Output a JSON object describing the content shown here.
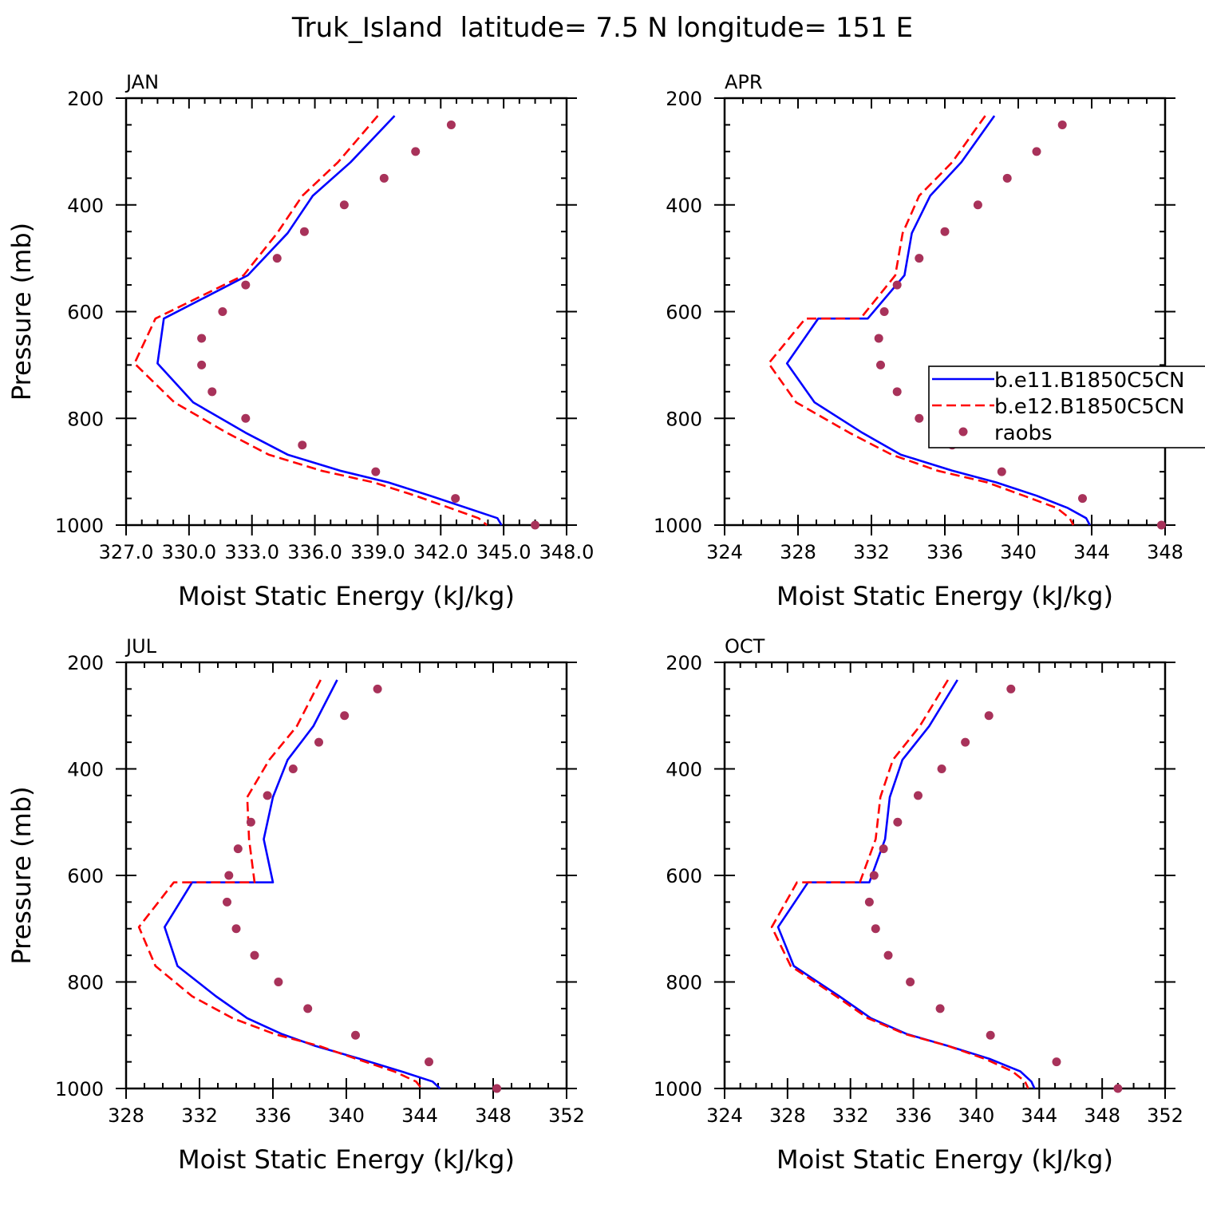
{
  "figure_title": "Truk_Island  latitude= 7.5 N longitude= 151 E",
  "colors": {
    "series1": "#0000ff",
    "series2": "#ff0000",
    "raobs": "#a8325a"
  },
  "legend": {
    "entries": [
      "b.e11.B1850C5CN",
      "b.e12.B1850C5CN",
      "raobs"
    ]
  },
  "chart_data": [
    {
      "type": "line",
      "panel_label": "JAN",
      "xlabel": "Moist Static Energy (kJ/kg)",
      "ylabel": "Pressure (mb)",
      "xlim": [
        327,
        348
      ],
      "ylim": [
        1000,
        200
      ],
      "xticks": [
        327,
        330,
        333,
        336,
        339,
        342,
        345,
        348
      ],
      "xtick_labels": [
        "327.0",
        "330.0",
        "333.0",
        "336.0",
        "339.0",
        "342.0",
        "345.0",
        "348.0"
      ],
      "yticks": [
        200,
        400,
        600,
        800,
        1000
      ],
      "series": [
        {
          "name": "b.e11.B1850C5CN",
          "style": "solid",
          "x": [
            339.8,
            337.7,
            335.9,
            334.7,
            332.8,
            328.8,
            328.5,
            330.2,
            332.7,
            334.7,
            337.2,
            339.5,
            341.5,
            344.7,
            344.9
          ],
          "y": [
            233,
            320,
            383,
            453,
            532,
            613,
            697,
            770,
            827,
            868,
            898,
            920,
            945,
            987,
            1000
          ]
        },
        {
          "name": "b.e12.B1850C5CN",
          "style": "dashed",
          "x": [
            339.0,
            337.1,
            335.4,
            334.2,
            332.6,
            328.4,
            327.4,
            329.3,
            331.8,
            333.8,
            336.3,
            338.8,
            340.8,
            343.8,
            344.2
          ],
          "y": [
            233,
            320,
            383,
            453,
            532,
            613,
            697,
            770,
            827,
            868,
            898,
            920,
            945,
            987,
            1000
          ]
        },
        {
          "name": "raobs",
          "style": "markers",
          "x": [
            342.5,
            340.8,
            339.3,
            337.4,
            335.5,
            334.2,
            332.7,
            331.6,
            330.6,
            330.6,
            331.1,
            332.7,
            335.4,
            338.9,
            342.7,
            346.5
          ],
          "y": [
            250,
            300,
            350,
            400,
            450,
            500,
            550,
            600,
            650,
            700,
            750,
            800,
            850,
            900,
            950,
            1000
          ]
        }
      ]
    },
    {
      "type": "line",
      "panel_label": "APR",
      "xlabel": "Moist Static Energy (kJ/kg)",
      "ylabel": "",
      "xlim": [
        324,
        348
      ],
      "ylim": [
        1000,
        200
      ],
      "xticks": [
        324,
        328,
        332,
        336,
        340,
        344,
        348
      ],
      "xtick_labels": [
        "324",
        "328",
        "332",
        "336",
        "340",
        "344",
        "348"
      ],
      "yticks": [
        200,
        400,
        600,
        800,
        1000
      ],
      "series": [
        {
          "name": "b.e11.B1850C5CN",
          "style": "solid",
          "x": [
            338.7,
            336.9,
            335.2,
            334.2,
            333.8,
            331.8,
            329.1,
            327.4,
            328.9,
            331.5,
            333.6,
            336.4,
            338.8,
            341.0,
            342.7,
            343.7,
            343.9
          ],
          "y": [
            233,
            320,
            383,
            453,
            532,
            613,
            613,
            697,
            770,
            827,
            868,
            898,
            920,
            945,
            968,
            987,
            1000
          ]
        },
        {
          "name": "b.e12.B1850C5CN",
          "style": "dashed",
          "x": [
            338.2,
            336.4,
            334.6,
            333.7,
            333.3,
            331.4,
            328.4,
            326.4,
            327.9,
            330.8,
            333.1,
            335.6,
            338.3,
            340.3,
            342.1,
            342.8,
            343.0
          ],
          "y": [
            233,
            320,
            383,
            453,
            532,
            613,
            613,
            697,
            770,
            827,
            868,
            898,
            920,
            945,
            968,
            987,
            1000
          ]
        },
        {
          "name": "raobs",
          "style": "markers",
          "x": [
            342.4,
            341.0,
            339.4,
            337.8,
            336.0,
            334.6,
            333.4,
            332.7,
            332.4,
            332.5,
            333.4,
            334.6,
            336.4,
            339.1,
            343.5,
            347.8
          ],
          "y": [
            250,
            300,
            350,
            400,
            450,
            500,
            550,
            600,
            650,
            700,
            750,
            800,
            850,
            900,
            950,
            1000
          ]
        }
      ]
    },
    {
      "type": "line",
      "panel_label": "JUL",
      "xlabel": "Moist Static Energy (kJ/kg)",
      "ylabel": "Pressure (mb)",
      "xlim": [
        328,
        352
      ],
      "ylim": [
        1000,
        200
      ],
      "xticks": [
        328,
        332,
        336,
        340,
        344,
        348,
        352
      ],
      "xtick_labels": [
        "328",
        "332",
        "336",
        "340",
        "344",
        "348",
        "352"
      ],
      "yticks": [
        200,
        400,
        600,
        800,
        1000
      ],
      "series": [
        {
          "name": "b.e11.B1850C5CN",
          "style": "solid",
          "x": [
            339.5,
            338.2,
            336.8,
            336.0,
            335.5,
            336.0,
            331.6,
            330.1,
            330.8,
            332.9,
            334.6,
            336.5,
            338.3,
            340.8,
            343.0,
            344.7,
            345.1
          ],
          "y": [
            233,
            320,
            383,
            453,
            532,
            613,
            613,
            697,
            770,
            827,
            868,
            898,
            920,
            945,
            968,
            987,
            1000
          ]
        },
        {
          "name": "b.e12.B1850C5CN",
          "style": "dashed",
          "x": [
            338.6,
            337.3,
            335.8,
            334.6,
            334.7,
            335.0,
            330.6,
            328.7,
            329.6,
            331.6,
            333.8,
            336.1,
            338.5,
            340.6,
            342.6,
            343.8,
            344.1
          ],
          "y": [
            233,
            320,
            383,
            453,
            532,
            613,
            613,
            697,
            770,
            827,
            868,
            898,
            920,
            945,
            968,
            987,
            1000
          ]
        },
        {
          "name": "raobs",
          "style": "markers",
          "x": [
            341.7,
            339.9,
            338.5,
            337.1,
            335.7,
            334.8,
            334.1,
            333.6,
            333.5,
            334.0,
            335.0,
            336.3,
            337.9,
            340.5,
            344.5,
            348.2
          ],
          "y": [
            250,
            300,
            350,
            400,
            450,
            500,
            550,
            600,
            650,
            700,
            750,
            800,
            850,
            900,
            950,
            1000
          ]
        }
      ]
    },
    {
      "type": "line",
      "panel_label": "OCT",
      "xlabel": "Moist Static Energy (kJ/kg)",
      "ylabel": "",
      "xlim": [
        324,
        352
      ],
      "ylim": [
        1000,
        200
      ],
      "xticks": [
        324,
        328,
        332,
        336,
        340,
        344,
        348,
        352
      ],
      "xtick_labels": [
        "324",
        "328",
        "332",
        "336",
        "340",
        "344",
        "348",
        "352"
      ],
      "yticks": [
        200,
        400,
        600,
        800,
        1000
      ],
      "series": [
        {
          "name": "b.e11.B1850C5CN",
          "style": "solid",
          "x": [
            338.8,
            337.0,
            335.3,
            334.5,
            334.2,
            333.2,
            329.3,
            327.4,
            328.4,
            331.3,
            333.3,
            335.6,
            338.2,
            340.9,
            342.8,
            343.5,
            343.7
          ],
          "y": [
            233,
            320,
            383,
            453,
            532,
            613,
            613,
            697,
            770,
            827,
            868,
            898,
            920,
            945,
            968,
            987,
            1000
          ]
        },
        {
          "name": "b.e12.B1850C5CN",
          "style": "dashed",
          "x": [
            338.2,
            336.4,
            334.7,
            333.9,
            333.6,
            332.6,
            328.6,
            327.0,
            328.2,
            331.1,
            333.1,
            335.5,
            338.2,
            340.6,
            342.3,
            343.1,
            343.3
          ],
          "y": [
            233,
            320,
            383,
            453,
            532,
            613,
            613,
            697,
            770,
            827,
            868,
            898,
            920,
            945,
            968,
            987,
            1000
          ]
        },
        {
          "name": "raobs",
          "style": "markers",
          "x": [
            342.2,
            340.8,
            339.3,
            337.8,
            336.3,
            335.0,
            334.1,
            333.5,
            333.2,
            333.6,
            334.4,
            335.8,
            337.7,
            340.9,
            345.1,
            349.0
          ],
          "y": [
            250,
            300,
            350,
            400,
            450,
            500,
            550,
            600,
            650,
            700,
            750,
            800,
            850,
            900,
            950,
            1000
          ]
        }
      ]
    }
  ]
}
